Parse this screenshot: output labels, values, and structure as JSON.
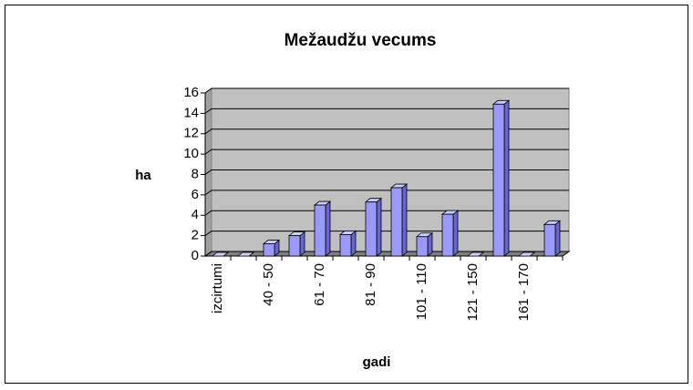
{
  "chart_data": {
    "type": "bar3d",
    "title": "Mežaudžu vecums",
    "x_label": "gadi",
    "y_label": "ha",
    "categories": [
      "izcirtumi",
      null,
      "40 - 50",
      null,
      "61 - 70",
      null,
      "81 - 90",
      null,
      "101 - 110",
      null,
      "121 - 150",
      null,
      "161 - 170",
      null
    ],
    "values": [
      0,
      0,
      1.2,
      2,
      5,
      2.1,
      5.3,
      6.7,
      1.9,
      4.1,
      0,
      14.9,
      0,
      3.1
    ],
    "color": "#9999ff",
    "ylim": [
      0,
      16
    ],
    "yticks": [
      0,
      2,
      4,
      6,
      8,
      10,
      12,
      14,
      16
    ],
    "grid": true
  }
}
